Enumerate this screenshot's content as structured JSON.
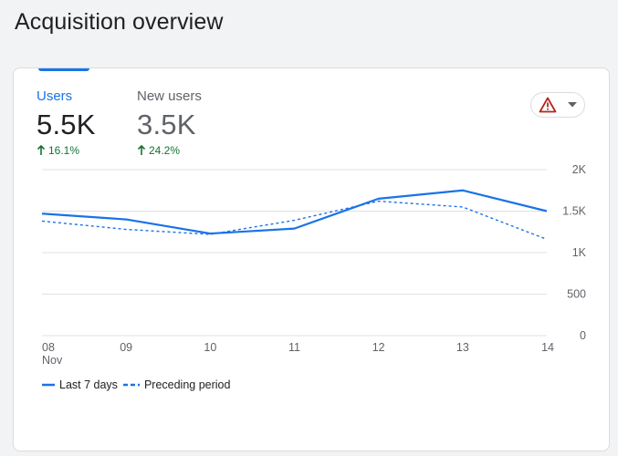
{
  "page": {
    "title": "Acquisition overview"
  },
  "metrics": [
    {
      "label": "Users",
      "value": "5.5K",
      "change": "16.1%",
      "selected": true
    },
    {
      "label": "New users",
      "value": "3.5K",
      "change": "24.2%",
      "selected": false
    }
  ],
  "alert": {
    "icon": "warning-icon",
    "dropdown_icon": "caret-down-icon"
  },
  "colors": {
    "accent": "#1a73e8",
    "positive": "#137333",
    "warning": "#b3261e",
    "gridline": "#e0e0e0"
  },
  "chart_data": {
    "type": "line",
    "x": [
      "08",
      "09",
      "10",
      "11",
      "12",
      "13",
      "14"
    ],
    "x_sublabels": [
      "Nov",
      "",
      "",
      "",
      "",
      "",
      ""
    ],
    "y_ticks": [
      "2K",
      "1.5K",
      "1K",
      "500",
      "0"
    ],
    "ylim": [
      0,
      2000
    ],
    "grid": true,
    "legend_position": "bottom-left",
    "series": [
      {
        "name": "Last 7 days",
        "style": "solid",
        "values": [
          1470,
          1400,
          1230,
          1290,
          1650,
          1750,
          1500
        ]
      },
      {
        "name": "Preceding period",
        "style": "dashed",
        "values": [
          1380,
          1280,
          1220,
          1390,
          1620,
          1550,
          1160
        ]
      }
    ]
  }
}
